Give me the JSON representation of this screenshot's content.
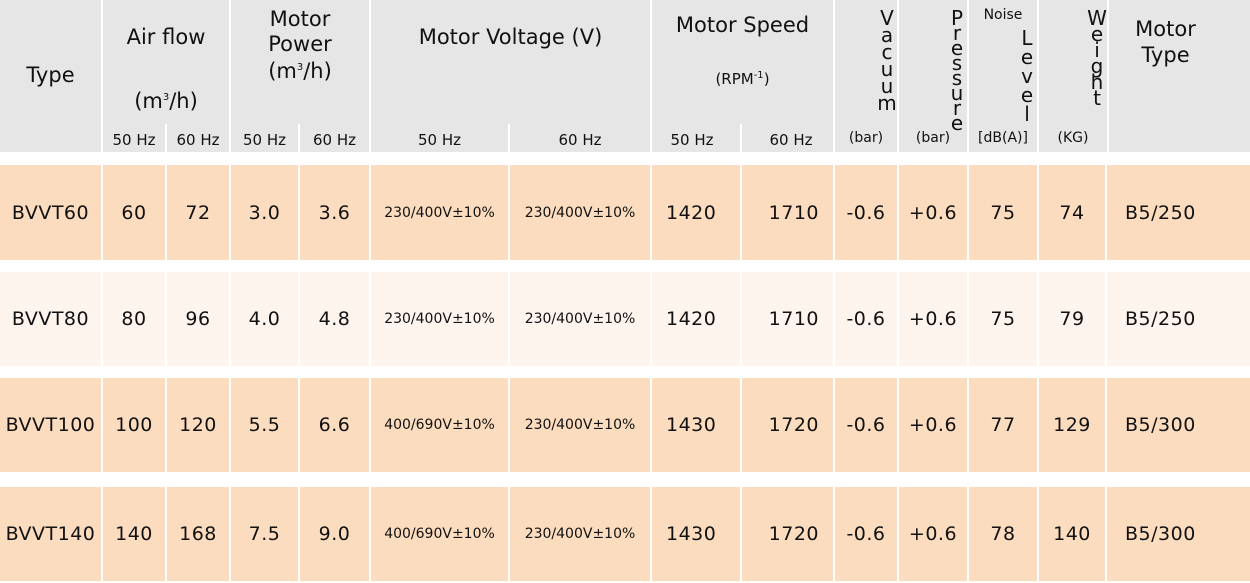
{
  "header": {
    "type": "Type",
    "air_flow": "Air flow",
    "air_flow_unit_pre": "(m",
    "air_flow_unit_sup": "3",
    "air_flow_unit_post": "/h)",
    "motor_power_l1": "Motor",
    "motor_power_l2": "Power",
    "motor_power_unit_pre": "(m",
    "motor_power_unit_sup": "3",
    "motor_power_unit_post": "/h)",
    "motor_voltage": "Motor Voltage (V)",
    "motor_speed": "Motor Speed",
    "motor_speed_unit_pre": "(RPM",
    "motor_speed_unit_sup": "-1",
    "motor_speed_unit_post": ")",
    "vacuum": "Vacuum",
    "vacuum_unit": "(bar)",
    "pressure": "Pressure",
    "pressure_unit": "(bar)",
    "noise_top": "Noise",
    "noise_level": "Level",
    "noise_unit": "[dB(A)]",
    "weight": "Weight",
    "weight_unit": "(KG)",
    "motor_type_l1": "Motor",
    "motor_type_l2": "Type",
    "hz50": "50 Hz",
    "hz60": "60 Hz"
  },
  "rows": [
    {
      "type": "BVVT60",
      "air50": "60",
      "air60": "72",
      "pow50": "3.0",
      "pow60": "3.6",
      "volt50": "230/400V±10%",
      "volt60": "230/400V±10%",
      "spd50": "1420",
      "spd60": "1710",
      "vacuum": "-0.6",
      "pressure": "+0.6",
      "noise": "75",
      "weight": "74",
      "motor": "B5/250"
    },
    {
      "type": "BVVT80",
      "air50": "80",
      "air60": "96",
      "pow50": "4.0",
      "pow60": "4.8",
      "volt50": "230/400V±10%",
      "volt60": "230/400V±10%",
      "spd50": "1420",
      "spd60": "1710",
      "vacuum": "-0.6",
      "pressure": "+0.6",
      "noise": "75",
      "weight": "79",
      "motor": "B5/250"
    },
    {
      "type": "BVVT100",
      "air50": "100",
      "air60": "120",
      "pow50": "5.5",
      "pow60": "6.6",
      "volt50": "400/690V±10%",
      "volt60": "230/400V±10%",
      "spd50": "1430",
      "spd60": "1720",
      "vacuum": "-0.6",
      "pressure": "+0.6",
      "noise": "77",
      "weight": "129",
      "motor": "B5/300"
    },
    {
      "type": "BVVT140",
      "air50": "140",
      "air60": "168",
      "pow50": "7.5",
      "pow60": "9.0",
      "volt50": "400/690V±10%",
      "volt60": "230/400V±10%",
      "spd50": "1430",
      "spd60": "1720",
      "vacuum": "-0.6",
      "pressure": "+0.6",
      "noise": "78",
      "weight": "140",
      "motor": "B5/300"
    }
  ],
  "colors": {
    "header_bg": "#e6e6e6",
    "row_peach": "#fcdcbf",
    "row_light": "#fdf4ee"
  }
}
